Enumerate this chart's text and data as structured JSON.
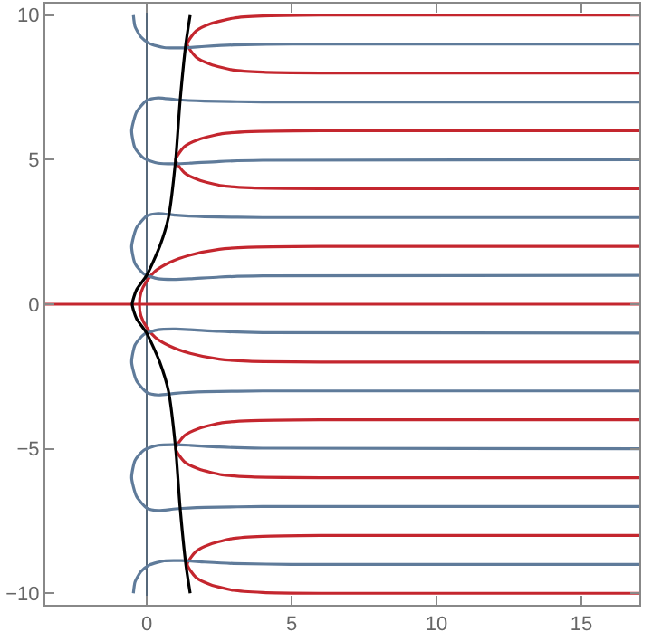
{
  "chart_data": {
    "type": "line",
    "xlim": [
      -3.5,
      17
    ],
    "ylim": [
      -10.4,
      10.4
    ],
    "xticks": [
      0,
      5,
      10,
      15
    ],
    "yticks": [
      {
        "value": -10,
        "label": "−10"
      },
      {
        "value": -5,
        "label": "−5"
      },
      0,
      5,
      10
    ],
    "grid": false,
    "marker": "none",
    "line_style": "solid",
    "ref_lines": [
      {
        "axis": "x",
        "value": 0,
        "color": "#56687a"
      }
    ],
    "series": [
      {
        "color": "#c4262e",
        "x": [
          17,
          6,
          4,
          3,
          2.2,
          1.7,
          1.4,
          1.7,
          2.2,
          3,
          4,
          6,
          17
        ],
        "values": [
          10,
          10,
          9.97,
          9.9,
          9.7,
          9.45,
          9,
          8.55,
          8.3,
          8.1,
          8.03,
          8,
          8
        ]
      },
      {
        "color": "#c4262e",
        "x": [
          17,
          6,
          3.6,
          2.6,
          1.8,
          1.3,
          1.0,
          1.3,
          1.8,
          2.6,
          3.6,
          6,
          17
        ],
        "values": [
          6,
          6,
          5.97,
          5.9,
          5.7,
          5.45,
          5,
          4.55,
          4.3,
          4.1,
          4.03,
          4,
          4
        ]
      },
      {
        "color": "#c4262e",
        "x": [
          17,
          6,
          3.5,
          2.5,
          1.5,
          0.8,
          0.3,
          0,
          -0.2,
          -0.25,
          -0.2,
          0,
          0.3,
          0.8,
          1.5,
          2.5,
          3.5,
          6,
          17
        ],
        "values": [
          2,
          2,
          1.97,
          1.9,
          1.7,
          1.45,
          1.15,
          0.8,
          0.4,
          0,
          -0.4,
          -0.8,
          -1.15,
          -1.45,
          -1.7,
          -1.9,
          -1.97,
          -2,
          -2
        ]
      },
      {
        "color": "#c4262e",
        "x": [
          17,
          6,
          3.6,
          2.6,
          1.8,
          1.3,
          1.0,
          1.3,
          1.8,
          2.6,
          3.6,
          6,
          17
        ],
        "values": [
          -4,
          -4,
          -4.03,
          -4.1,
          -4.3,
          -4.55,
          -5,
          -5.45,
          -5.7,
          -5.9,
          -5.97,
          -6,
          -6
        ]
      },
      {
        "color": "#c4262e",
        "x": [
          17,
          6,
          4,
          3,
          2.2,
          1.7,
          1.4,
          1.7,
          2.2,
          3,
          4,
          6,
          17
        ],
        "values": [
          -8,
          -8,
          -8.03,
          -8.1,
          -8.3,
          -8.55,
          -9,
          -9.45,
          -9.7,
          -9.9,
          -9.97,
          -10,
          -10
        ]
      },
      {
        "color": "#c4262e",
        "x": [
          -3.5,
          17
        ],
        "values": [
          0,
          0
        ]
      },
      {
        "color": "#5f7b9a",
        "x": [
          -0.46,
          -0.4,
          -0.2,
          0.1,
          0.6,
          1.2,
          2,
          3,
          5,
          17
        ],
        "values": [
          10,
          9.6,
          9.25,
          9.02,
          8.88,
          8.87,
          8.92,
          8.97,
          9,
          9
        ]
      },
      {
        "color": "#5f7b9a",
        "x": [
          17,
          4,
          2,
          1,
          0.4,
          0,
          -0.35,
          -0.52,
          -0.4,
          -0.1,
          0.4,
          1,
          1.5,
          2.5,
          4,
          17
        ],
        "values": [
          7,
          7,
          7.03,
          7.08,
          7.14,
          7.05,
          6.65,
          6,
          5.4,
          5.05,
          4.88,
          4.86,
          4.88,
          4.94,
          4.98,
          5
        ]
      },
      {
        "color": "#5f7b9a",
        "x": [
          17,
          4,
          2,
          1,
          0.4,
          0,
          -0.35,
          -0.52,
          -0.4,
          -0.1,
          0.4,
          1,
          1.5,
          2.5,
          4,
          17
        ],
        "values": [
          3,
          3,
          3.03,
          3.08,
          3.14,
          3.05,
          2.65,
          2,
          1.4,
          1.05,
          0.88,
          0.86,
          0.88,
          0.94,
          0.98,
          1
        ]
      },
      {
        "color": "#5f7b9a",
        "x": [
          17,
          4,
          2,
          1,
          0.4,
          0,
          -0.35,
          -0.52,
          -0.4,
          -0.1,
          0.4,
          1,
          1.5,
          2.5,
          4,
          17
        ],
        "values": [
          -3,
          -3,
          -3.03,
          -3.08,
          -3.14,
          -3.05,
          -2.65,
          -2,
          -1.4,
          -1.05,
          -0.88,
          -0.86,
          -0.88,
          -0.94,
          -0.98,
          -1
        ]
      },
      {
        "color": "#5f7b9a",
        "x": [
          17,
          4,
          2,
          1,
          0.4,
          0,
          -0.35,
          -0.52,
          -0.4,
          -0.1,
          0.4,
          1,
          1.5,
          2.5,
          4,
          17
        ],
        "values": [
          -7,
          -7,
          -7.03,
          -7.08,
          -7.14,
          -7.05,
          -6.65,
          -6,
          -5.4,
          -5.05,
          -4.88,
          -4.86,
          -4.88,
          -4.94,
          -4.98,
          -5
        ]
      },
      {
        "color": "#5f7b9a",
        "x": [
          -0.46,
          -0.4,
          -0.2,
          0.1,
          0.6,
          1.2,
          2,
          3,
          5,
          17
        ],
        "values": [
          -10,
          -9.6,
          -9.25,
          -9.02,
          -8.88,
          -8.87,
          -8.92,
          -8.97,
          -9,
          -9
        ]
      },
      {
        "color": "#000000",
        "x": [
          1.5,
          1.35,
          1.15,
          1.0,
          0.75,
          0.45,
          0,
          -0.35,
          -0.5,
          -0.35,
          0,
          0.45,
          0.75,
          1.0,
          1.15,
          1.35,
          1.5
        ],
        "values": [
          10,
          9,
          7,
          5,
          3,
          2,
          1,
          0.5,
          0,
          -0.5,
          -1,
          -2,
          -3,
          -5,
          -7,
          -9,
          -10
        ]
      }
    ]
  }
}
